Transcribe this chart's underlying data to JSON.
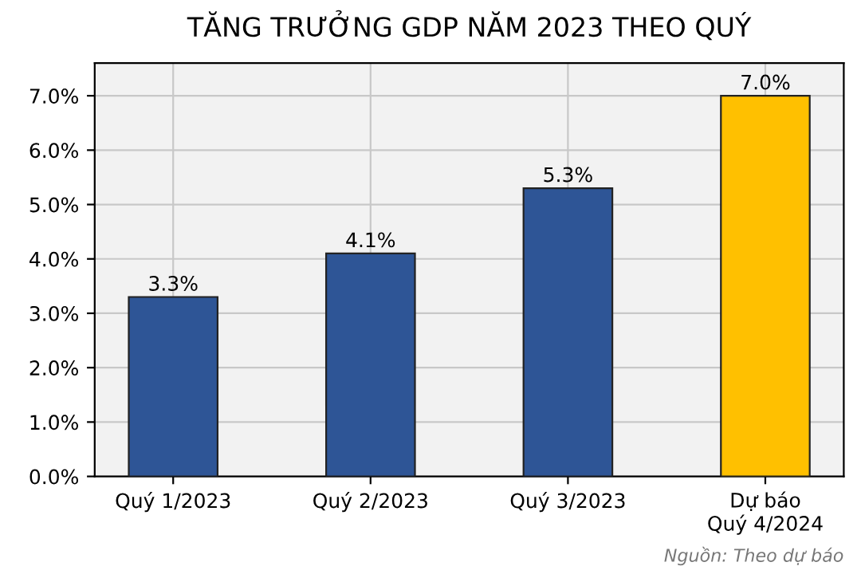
{
  "chart_data": {
    "type": "bar",
    "title": "TĂNG TRƯỞNG GDP NĂM 2023 THEO QUÝ",
    "categories": [
      "Quý 1/2023",
      "Quý 2/2023",
      "Quý 3/2023",
      "Dự báo\nQuý 4/2024"
    ],
    "values": [
      3.3,
      4.1,
      5.3,
      7.0
    ],
    "colors": [
      "#2e5596",
      "#2e5596",
      "#2e5596",
      "#ffc000"
    ],
    "value_labels": [
      "3.3%",
      "4.1%",
      "5.3%",
      "7.0%"
    ],
    "ylim": [
      0,
      7.6
    ],
    "yticks": [
      {
        "value": 0,
        "label": "0.0%"
      },
      {
        "value": 1,
        "label": "1.0%"
      },
      {
        "value": 2,
        "label": "2.0%"
      },
      {
        "value": 3,
        "label": "3.0%"
      },
      {
        "value": 4,
        "label": "4.0%"
      },
      {
        "value": 5,
        "label": "5.0%"
      },
      {
        "value": 6,
        "label": "6.0%"
      },
      {
        "value": 7,
        "label": "7.0%"
      }
    ],
    "grid": true,
    "annotations": [
      "Nguồn: Theo dự báo"
    ]
  }
}
